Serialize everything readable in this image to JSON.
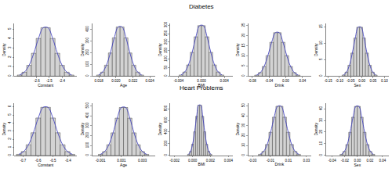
{
  "chart_data": [
    {
      "type": "histogram",
      "group": "Diabetes",
      "x_label": "Constant",
      "y_label": "Density",
      "bins": [
        -2.755,
        -2.7175,
        -2.68,
        -2.6425,
        -2.605,
        -2.5675,
        -2.53,
        -2.4925,
        -2.455,
        -2.4175,
        -2.38,
        -2.3425,
        -2.305
      ],
      "series": [
        {
          "type": "bar",
          "color": "#d3d3d3",
          "values": [
            0.121,
            0.423,
            1.151,
            2.435,
            4.015,
            5.156,
            5.156,
            4.015,
            2.435,
            1.151,
            0.423,
            0.121
          ]
        },
        {
          "type": "line",
          "color": "#3333bb",
          "values": [
            0.121,
            0.423,
            1.151,
            2.435,
            4.015,
            5.156,
            5.156,
            4.015,
            2.435,
            1.151,
            0.423,
            0.121
          ]
        }
      ],
      "xlim": [
        -2.78,
        -2.28
      ],
      "xticks": [
        -2.6,
        -2.5,
        -2.4
      ],
      "ylim": [
        0,
        5.6
      ],
      "yticks": [
        0,
        1,
        2,
        3,
        4,
        5
      ],
      "grid": false
    },
    {
      "type": "histogram",
      "group": "Diabetes",
      "x_label": "Age",
      "y_label": "Density",
      "bins": [
        0.01774,
        0.0182,
        0.01866,
        0.01912,
        0.01958,
        0.02004,
        0.0205,
        0.02096,
        0.02142,
        0.02188,
        0.02234,
        0.0228,
        0.02326
      ],
      "series": [
        {
          "type": "bar",
          "color": "#d3d3d3",
          "values": [
            9.89,
            34.46,
            93.8,
            198.48,
            327.28,
            420.33,
            420.33,
            327.28,
            198.48,
            93.8,
            34.46,
            9.89
          ]
        },
        {
          "type": "line",
          "color": "#3333bb",
          "values": [
            9.89,
            34.46,
            93.8,
            198.48,
            327.28,
            420.33,
            420.33,
            327.28,
            198.48,
            93.8,
            34.46,
            9.89
          ]
        }
      ],
      "xlim": [
        0.0172,
        0.0246
      ],
      "xticks": [
        0.018,
        {
          "value": 0.02,
          "label": "0.020"
        },
        0.022,
        0.024
      ],
      "ylim": [
        0,
        450
      ],
      "yticks": [
        0,
        100,
        200,
        300,
        400
      ],
      "grid": false
    },
    {
      "type": "histogram",
      "group": "Diabetes",
      "x_label": "BMI",
      "y_label": "Density",
      "bins": [
        -0.0039,
        -0.00325,
        -0.0026,
        -0.00195,
        -0.0013,
        -0.00065,
        0,
        0.00065,
        0.0013,
        0.00195,
        0.0026,
        0.00325,
        0.0039
      ],
      "series": [
        {
          "type": "bar",
          "color": "#d3d3d3",
          "values": [
            7.0,
            24.38,
            66.38,
            140.46,
            231.62,
            297.46,
            297.46,
            231.62,
            140.46,
            66.38,
            24.38,
            7.0
          ]
        },
        {
          "type": "line",
          "color": "#3333bb",
          "values": [
            7.0,
            24.38,
            66.38,
            140.46,
            231.62,
            297.46,
            297.46,
            231.62,
            140.46,
            66.38,
            24.38,
            7.0
          ]
        }
      ],
      "xlim": [
        -0.0055,
        0.0055
      ],
      "xticks": [
        -0.004,
        {
          "value": 0,
          "label": "0.000"
        },
        0.004
      ],
      "ylim": [
        0,
        310
      ],
      "yticks": [
        0,
        50,
        100,
        150,
        200,
        250,
        300
      ],
      "grid": false
    },
    {
      "type": "histogram",
      "group": "Diabetes",
      "x_label": "Drink",
      "y_label": "Density",
      "bins": [
        -0.074,
        -0.065,
        -0.056,
        -0.047,
        -0.038,
        -0.029,
        -0.02,
        -0.011,
        -0.002,
        0.007,
        0.016,
        0.025,
        0.034
      ],
      "series": [
        {
          "type": "bar",
          "color": "#d3d3d3",
          "values": [
            0.506,
            1.761,
            4.794,
            10.144,
            16.728,
            21.483,
            21.483,
            16.728,
            10.144,
            4.794,
            1.761,
            0.506
          ]
        },
        {
          "type": "line",
          "color": "#3333bb",
          "values": [
            0.506,
            1.761,
            4.794,
            10.144,
            16.728,
            21.483,
            21.483,
            16.728,
            10.144,
            4.794,
            1.761,
            0.506
          ]
        }
      ],
      "xlim": [
        -0.09,
        0.06
      ],
      "xticks": [
        -0.08,
        -0.04,
        {
          "value": 0,
          "label": "0.00"
        },
        0.04
      ],
      "ylim": [
        0,
        26
      ],
      "yticks": [
        0,
        5,
        10,
        15,
        20,
        25
      ],
      "grid": false
    },
    {
      "type": "histogram",
      "group": "Diabetes",
      "x_label": "Sex",
      "y_label": "Density",
      "bins": [
        -0.088,
        -0.075,
        -0.062,
        -0.049,
        -0.036,
        -0.023,
        -0.01,
        0.003,
        0.016,
        0.029,
        0.042,
        0.055,
        0.068
      ],
      "series": [
        {
          "type": "bar",
          "color": "#d3d3d3",
          "values": [
            0.35,
            1.219,
            3.319,
            7.023,
            11.581,
            14.873,
            14.873,
            11.581,
            7.023,
            3.319,
            1.219,
            0.35
          ]
        },
        {
          "type": "line",
          "color": "#3333bb",
          "values": [
            0.35,
            1.219,
            3.319,
            7.023,
            11.581,
            14.873,
            14.873,
            11.581,
            7.023,
            3.319,
            1.219,
            0.35
          ]
        }
      ],
      "xlim": [
        -0.16,
        0.12
      ],
      "xticks": [
        -0.15,
        {
          "value": -0.1,
          "label": "-0.10"
        },
        -0.05,
        {
          "value": 0,
          "label": "0.00"
        },
        0.05,
        {
          "value": 0.1,
          "label": "0.10"
        }
      ],
      "ylim": [
        0,
        16
      ],
      "yticks": [
        0,
        5,
        10,
        15
      ],
      "grid": false
    },
    {
      "type": "histogram",
      "group": "Heart Problems",
      "x_label": "Constant",
      "y_label": "Density",
      "bins": [
        -0.745,
        -0.7125,
        -0.68,
        -0.6475,
        -0.615,
        -0.5825,
        -0.55,
        -0.5175,
        -0.485,
        -0.4525,
        -0.42,
        -0.3875,
        -0.355
      ],
      "series": [
        {
          "type": "bar",
          "color": "#d3d3d3",
          "values": [
            0.14,
            0.488,
            1.328,
            2.809,
            4.632,
            5.949,
            5.949,
            4.632,
            2.809,
            1.328,
            0.488,
            0.14
          ]
        },
        {
          "type": "line",
          "color": "#3333bb",
          "values": [
            0.14,
            0.488,
            1.328,
            2.809,
            4.632,
            5.949,
            5.949,
            4.632,
            2.809,
            1.328,
            0.488,
            0.14
          ]
        }
      ],
      "xlim": [
        -0.76,
        -0.34
      ],
      "xticks": [
        -0.7,
        -0.6,
        -0.5,
        -0.4
      ],
      "ylim": [
        0,
        6.5
      ],
      "yticks": [
        0,
        1,
        2,
        3,
        4,
        5,
        6
      ],
      "grid": false
    },
    {
      "type": "histogram",
      "group": "Heart Problems",
      "x_label": "Age",
      "y_label": "Density",
      "bins": [
        -0.0012,
        -0.0008,
        -0.0004,
        0,
        0.0004,
        0.0008,
        0.0012,
        0.0016,
        0.002,
        0.0024,
        0.0028,
        0.0032,
        0.0036
      ],
      "series": [
        {
          "type": "bar",
          "color": "#d3d3d3",
          "values": [
            11.38,
            39.63,
            107.88,
            228.25,
            376.38,
            483.38,
            483.38,
            376.38,
            228.25,
            107.88,
            39.63,
            11.38
          ]
        },
        {
          "type": "line",
          "color": "#3333bb",
          "values": [
            11.38,
            39.63,
            107.88,
            228.25,
            376.38,
            483.38,
            483.38,
            376.38,
            228.25,
            107.88,
            39.63,
            11.38
          ]
        }
      ],
      "xlim": [
        -0.0018,
        0.0042
      ],
      "xticks": [
        -0.001,
        0.001,
        0.003
      ],
      "ylim": [
        0,
        530
      ],
      "yticks": [
        0,
        100,
        200,
        300,
        400,
        500
      ],
      "grid": false
    },
    {
      "type": "histogram",
      "group": "Heart Problems",
      "x_label": "BMI",
      "y_label": "Density",
      "bins": [
        -0.00055,
        -0.000325,
        -0.0001,
        0.000125,
        0.00035,
        0.000575,
        0.0008,
        0.001025,
        0.00125,
        0.001475,
        0.0017,
        0.001925,
        0.00215
      ],
      "series": [
        {
          "type": "bar",
          "color": "#d3d3d3",
          "values": [
            20.2,
            70.4,
            191.8,
            405.8,
            669.1,
            859.3,
            859.3,
            669.1,
            405.8,
            191.8,
            70.4,
            20.2
          ]
        },
        {
          "type": "line",
          "color": "#3333bb",
          "values": [
            20.2,
            70.4,
            191.8,
            405.8,
            669.1,
            859.3,
            859.3,
            669.1,
            405.8,
            191.8,
            70.4,
            20.2
          ]
        }
      ],
      "xlim": [
        -0.0025,
        0.0045
      ],
      "xticks": [
        -0.002,
        {
          "value": 0,
          "label": "0.000"
        },
        0.002,
        0.004
      ],
      "ylim": [
        0,
        900
      ],
      "yticks": [
        0,
        200,
        400,
        600,
        800
      ],
      "grid": false
    },
    {
      "type": "histogram",
      "group": "Heart Problems",
      "x_label": "Drink",
      "y_label": "Density",
      "bins": [
        -0.0234,
        -0.0195,
        -0.0156,
        -0.0117,
        -0.0078,
        -0.0039,
        0,
        0.0039,
        0.0078,
        0.0117,
        0.0156,
        0.0195,
        0.0234
      ],
      "series": [
        {
          "type": "bar",
          "color": "#d3d3d3",
          "values": [
            1.167,
            4.064,
            11.064,
            23.41,
            38.603,
            49.577,
            49.577,
            38.603,
            23.41,
            11.064,
            4.064,
            1.167
          ]
        },
        {
          "type": "line",
          "color": "#3333bb",
          "values": [
            1.167,
            4.064,
            11.064,
            23.41,
            38.603,
            49.577,
            49.577,
            38.603,
            23.41,
            11.064,
            4.064,
            1.167
          ]
        }
      ],
      "xlim": [
        -0.035,
        0.035
      ],
      "xticks": [
        -0.03,
        -0.01,
        0.01,
        0.03
      ],
      "ylim": [
        0,
        53
      ],
      "yticks": [
        0,
        10,
        20,
        30,
        40,
        50
      ],
      "grid": false
    },
    {
      "type": "histogram",
      "group": "Heart Problems",
      "x_label": "Sex",
      "y_label": "Density",
      "bins": [
        -0.0276,
        -0.023,
        -0.0184,
        -0.0138,
        -0.0092,
        -0.0046,
        0,
        0.0046,
        0.0092,
        0.0138,
        0.0184,
        0.023,
        0.0276
      ],
      "series": [
        {
          "type": "bar",
          "color": "#d3d3d3",
          "values": [
            0.989,
            3.446,
            9.38,
            19.848,
            32.728,
            42.033,
            42.033,
            32.728,
            19.848,
            9.38,
            3.446,
            0.989
          ]
        },
        {
          "type": "line",
          "color": "#3333bb",
          "values": [
            0.989,
            3.446,
            9.38,
            19.848,
            32.728,
            42.033,
            42.033,
            32.728,
            19.848,
            9.38,
            3.446,
            0.989
          ]
        }
      ],
      "xlim": [
        -0.05,
        0.05
      ],
      "xticks": [
        -0.04,
        -0.02,
        {
          "value": 0,
          "label": "0.00"
        },
        0.02,
        0.04
      ],
      "ylim": [
        0,
        45
      ],
      "yticks": [
        0,
        10,
        20,
        30,
        40
      ],
      "grid": false
    }
  ]
}
